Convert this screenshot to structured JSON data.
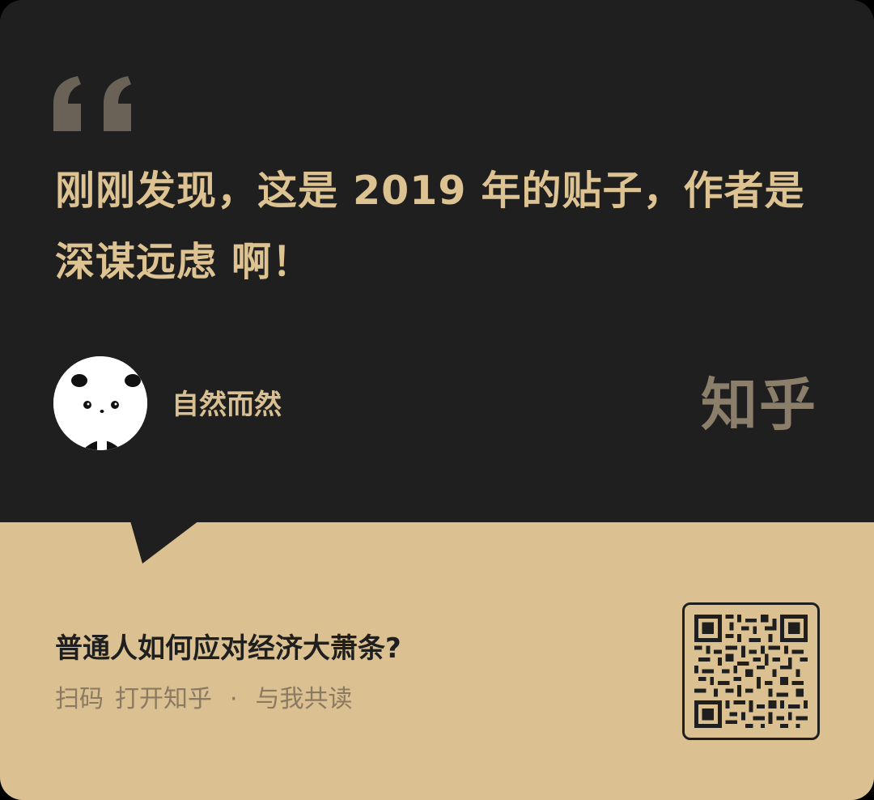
{
  "quote": {
    "text": "刚刚发现，这是 2019 年的贴子，作者是深谋远虑 啊！"
  },
  "author": {
    "name": "自然而然"
  },
  "brand": {
    "name": "知乎"
  },
  "question": {
    "title": "普通人如何应对经济大萧条?"
  },
  "cta": {
    "scan": "扫码",
    "open": "打开知乎",
    "dot": "·",
    "read": "与我共读"
  },
  "icons": {
    "quote": "quote-mark-icon",
    "avatar": "panda-avatar",
    "qr": "qr-code"
  },
  "colors": {
    "dark_bg": "#1f1f1f",
    "gold_text": "#ddc292",
    "tan_bg": "#dbc091",
    "brand_gray": "#8b7e6b"
  }
}
